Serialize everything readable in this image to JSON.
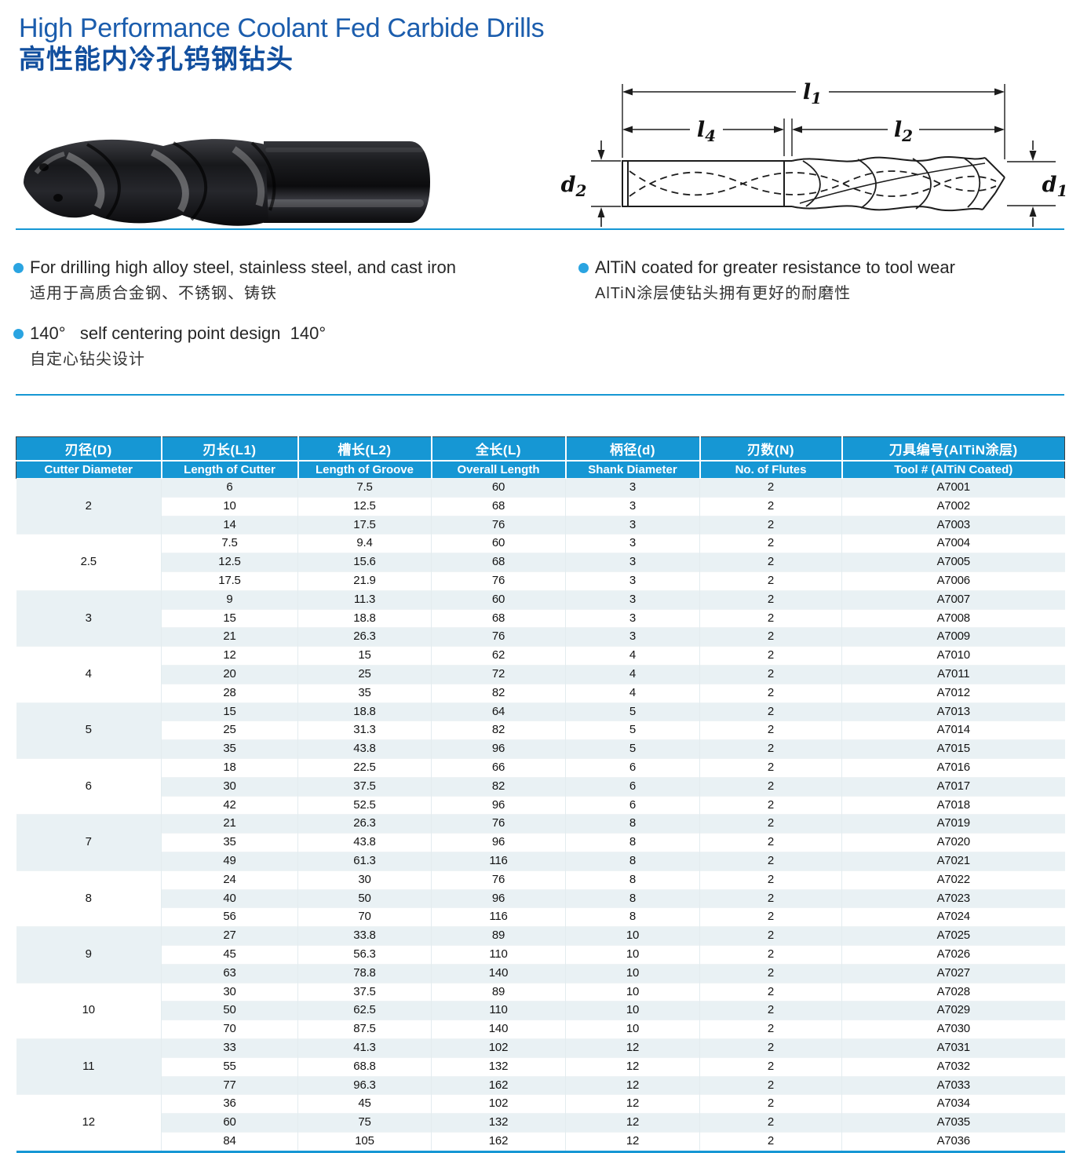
{
  "header": {
    "title_en": "High Performance Coolant Fed Carbide Drills",
    "title_zh": "高性能内冷孔钨钢钻头"
  },
  "features": [
    {
      "en": "For drilling high alloy steel, stainless steel, and cast iron",
      "zh": "适用于高质合金钢、不锈钢、铸铁"
    },
    {
      "en": "140°   self centering point design  140°",
      "zh": "自定心钻尖设计"
    },
    {
      "en": "AlTiN coated for greater resistance to tool wear",
      "zh": "AlTiN涂层使钻头拥有更好的耐磨性"
    }
  ],
  "diagram": {
    "l1": {
      "base": "l",
      "sub": "1"
    },
    "l4": {
      "base": "l",
      "sub": "4"
    },
    "l2": {
      "base": "l",
      "sub": "2"
    },
    "d2": {
      "base": "d",
      "sub": "2"
    },
    "d1": {
      "base": "d",
      "sub": "1"
    }
  },
  "table": {
    "columns_zh": [
      "刃径(D)",
      "刃长(L1)",
      "槽长(L2)",
      "全长(L)",
      "柄径(d)",
      "刃数(N)",
      "刀具编号(AlTiN涂层)"
    ],
    "columns_en": [
      "Cutter Diameter",
      "Length of Cutter",
      "Length of Groove",
      "Overall Length",
      "Shank Diameter",
      "No. of Flutes",
      "Tool # (AlTiN Coated)"
    ],
    "groups": [
      {
        "diameter": "2",
        "rows": [
          [
            "6",
            "7.5",
            "60",
            "3",
            "2",
            "A7001"
          ],
          [
            "10",
            "12.5",
            "68",
            "3",
            "2",
            "A7002"
          ],
          [
            "14",
            "17.5",
            "76",
            "3",
            "2",
            "A7003"
          ]
        ]
      },
      {
        "diameter": "2.5",
        "rows": [
          [
            "7.5",
            "9.4",
            "60",
            "3",
            "2",
            "A7004"
          ],
          [
            "12.5",
            "15.6",
            "68",
            "3",
            "2",
            "A7005"
          ],
          [
            "17.5",
            "21.9",
            "76",
            "3",
            "2",
            "A7006"
          ]
        ]
      },
      {
        "diameter": "3",
        "rows": [
          [
            "9",
            "11.3",
            "60",
            "3",
            "2",
            "A7007"
          ],
          [
            "15",
            "18.8",
            "68",
            "3",
            "2",
            "A7008"
          ],
          [
            "21",
            "26.3",
            "76",
            "3",
            "2",
            "A7009"
          ]
        ]
      },
      {
        "diameter": "4",
        "rows": [
          [
            "12",
            "15",
            "62",
            "4",
            "2",
            "A7010"
          ],
          [
            "20",
            "25",
            "72",
            "4",
            "2",
            "A7011"
          ],
          [
            "28",
            "35",
            "82",
            "4",
            "2",
            "A7012"
          ]
        ]
      },
      {
        "diameter": "5",
        "rows": [
          [
            "15",
            "18.8",
            "64",
            "5",
            "2",
            "A7013"
          ],
          [
            "25",
            "31.3",
            "82",
            "5",
            "2",
            "A7014"
          ],
          [
            "35",
            "43.8",
            "96",
            "5",
            "2",
            "A7015"
          ]
        ]
      },
      {
        "diameter": "6",
        "rows": [
          [
            "18",
            "22.5",
            "66",
            "6",
            "2",
            "A7016"
          ],
          [
            "30",
            "37.5",
            "82",
            "6",
            "2",
            "A7017"
          ],
          [
            "42",
            "52.5",
            "96",
            "6",
            "2",
            "A7018"
          ]
        ]
      },
      {
        "diameter": "7",
        "rows": [
          [
            "21",
            "26.3",
            "76",
            "8",
            "2",
            "A7019"
          ],
          [
            "35",
            "43.8",
            "96",
            "8",
            "2",
            "A7020"
          ],
          [
            "49",
            "61.3",
            "116",
            "8",
            "2",
            "A7021"
          ]
        ]
      },
      {
        "diameter": "8",
        "rows": [
          [
            "24",
            "30",
            "76",
            "8",
            "2",
            "A7022"
          ],
          [
            "40",
            "50",
            "96",
            "8",
            "2",
            "A7023"
          ],
          [
            "56",
            "70",
            "116",
            "8",
            "2",
            "A7024"
          ]
        ]
      },
      {
        "diameter": "9",
        "rows": [
          [
            "27",
            "33.8",
            "89",
            "10",
            "2",
            "A7025"
          ],
          [
            "45",
            "56.3",
            "110",
            "10",
            "2",
            "A7026"
          ],
          [
            "63",
            "78.8",
            "140",
            "10",
            "2",
            "A7027"
          ]
        ]
      },
      {
        "diameter": "10",
        "rows": [
          [
            "30",
            "37.5",
            "89",
            "10",
            "2",
            "A7028"
          ],
          [
            "50",
            "62.5",
            "110",
            "10",
            "2",
            "A7029"
          ],
          [
            "70",
            "87.5",
            "140",
            "10",
            "2",
            "A7030"
          ]
        ]
      },
      {
        "diameter": "11",
        "rows": [
          [
            "33",
            "41.3",
            "102",
            "12",
            "2",
            "A7031"
          ],
          [
            "55",
            "68.8",
            "132",
            "12",
            "2",
            "A7032"
          ],
          [
            "77",
            "96.3",
            "162",
            "12",
            "2",
            "A7033"
          ]
        ]
      },
      {
        "diameter": "12",
        "rows": [
          [
            "36",
            "45",
            "102",
            "12",
            "2",
            "A7034"
          ],
          [
            "60",
            "75",
            "132",
            "12",
            "2",
            "A7035"
          ],
          [
            "84",
            "105",
            "162",
            "12",
            "2",
            "A7036"
          ]
        ]
      }
    ]
  },
  "colors": {
    "accent_blue": "#1697d4",
    "title_blue": "#1b5dad",
    "row_tint": "#e9f1f4",
    "bullet_blue": "#2aa4e1"
  }
}
